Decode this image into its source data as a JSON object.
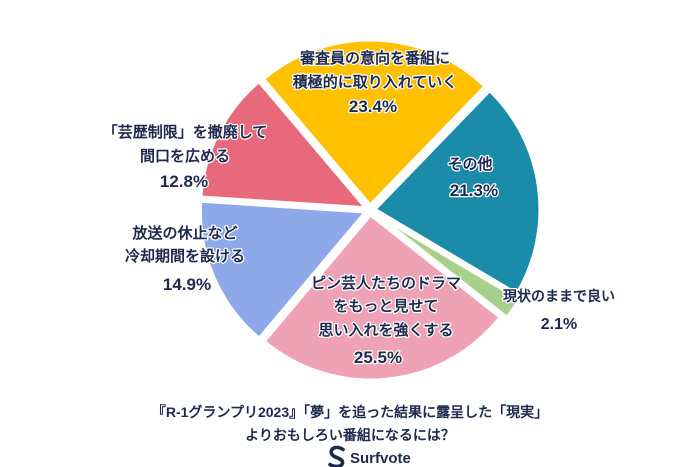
{
  "chart_data": {
    "type": "pie",
    "title": [
      "『R-1グランプリ2023』「夢」を追った結果に露呈した「現実」",
      "よりおもしろい番組になるには？"
    ],
    "legend": "none",
    "label_color": "#1D2A4D",
    "slices": [
      {
        "label": [
          "審査員の意向を番組に",
          "積極的に取り入れていく"
        ],
        "value": 23.4,
        "value_label": "23.4%",
        "color": "#FFC000"
      },
      {
        "label": [
          "その他"
        ],
        "value": 21.3,
        "value_label": "21.3%",
        "color": "#1A8BA9"
      },
      {
        "label": [
          "現状のままで良い"
        ],
        "value": 2.1,
        "value_label": "2.1%",
        "color": "#A8D08D"
      },
      {
        "label": [
          "ピン芸人たちのドラマ",
          "をもっと見せて",
          "思い入れを強くする"
        ],
        "value": 25.5,
        "value_label": "25.5%",
        "color": "#EFA2B6"
      },
      {
        "label": [
          "放送の休止など",
          "冷却期間を設ける"
        ],
        "value": 14.9,
        "value_label": "14.9%",
        "color": "#8DA9E9"
      },
      {
        "label": [
          "「芸歴制限」を撤廃して",
          "間口を広める"
        ],
        "value": 12.8,
        "value_label": "12.8%",
        "color": "#E8687C"
      }
    ]
  },
  "brand": {
    "name": "Surfvote",
    "icon": "surfvote-logo-icon",
    "color": "#1D2A4D"
  }
}
